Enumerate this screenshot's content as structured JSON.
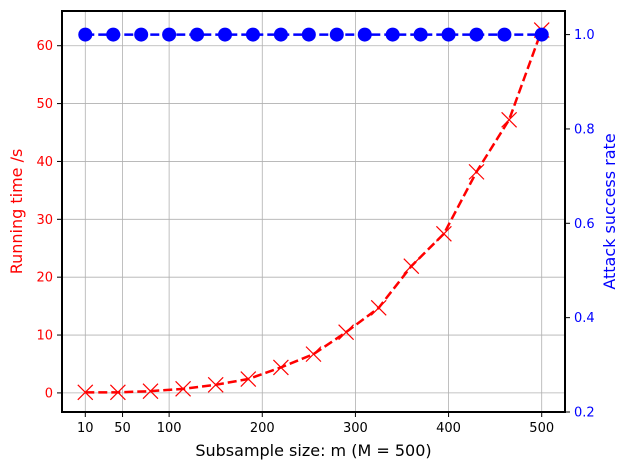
{
  "chart_data": {
    "type": "line",
    "xlabel": "Subsample size: m (M = 500)",
    "ylabel_left": "Running time /s",
    "ylabel_right": "Attack success rate",
    "xlim": [
      -15,
      525
    ],
    "ylim_left": [
      -3.3,
      66
    ],
    "ylim_right": [
      0.2,
      1.05
    ],
    "xticks": [
      10,
      50,
      100,
      200,
      300,
      400,
      500
    ],
    "xtick_labels": [
      "10",
      "50",
      "100",
      "200",
      "300",
      "400",
      "500"
    ],
    "yticks_left": [
      0,
      10,
      20,
      30,
      40,
      50,
      60
    ],
    "ytick_labels_left": [
      "0",
      "10",
      "20",
      "30",
      "40",
      "50",
      "60"
    ],
    "yticks_right": [
      0.2,
      0.4,
      0.6,
      0.8,
      1.0
    ],
    "ytick_labels_right": [
      "0.2",
      "0.4",
      "0.6",
      "0.8",
      "1.0"
    ],
    "grid": true,
    "series": [
      {
        "axis": "left",
        "color": "#ff0000",
        "line_style": "dashed",
        "marker": "x",
        "x": [
          10,
          45,
          80,
          115,
          150,
          185,
          220,
          255,
          290,
          325,
          360,
          395,
          430,
          465,
          500
        ],
        "y": [
          0.1,
          0.1,
          0.3,
          0.7,
          1.4,
          2.4,
          4.4,
          6.7,
          10.5,
          14.7,
          21.9,
          27.5,
          38.2,
          47.2,
          62.7
        ]
      },
      {
        "axis": "right",
        "color": "#0000ff",
        "line_style": "dashed",
        "marker": "circle",
        "x": [
          10,
          40,
          70,
          100,
          130,
          160,
          190,
          220,
          250,
          280,
          310,
          340,
          370,
          400,
          430,
          460,
          500
        ],
        "y": [
          1.0,
          1.0,
          1.0,
          1.0,
          1.0,
          1.0,
          1.0,
          1.0,
          1.0,
          1.0,
          1.0,
          1.0,
          1.0,
          1.0,
          1.0,
          1.0,
          1.0
        ]
      }
    ]
  }
}
